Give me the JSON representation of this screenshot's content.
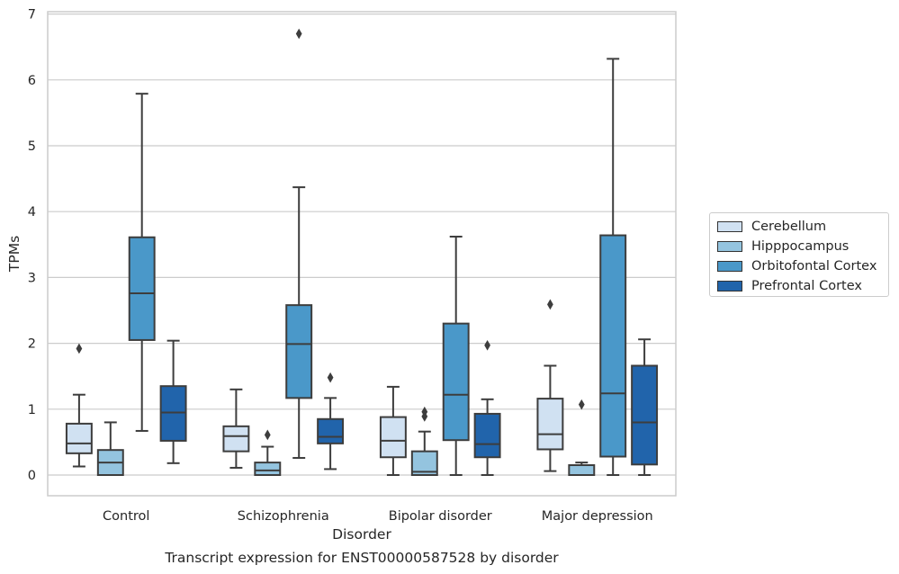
{
  "caption": "Transcript expression for ENST00000587528 by disorder",
  "chart_data": {
    "type": "box",
    "xlabel": "Disorder",
    "ylabel": "TPMs",
    "ylim": [
      -0.3,
      7.05
    ],
    "yticks": [
      0,
      1,
      2,
      3,
      4,
      5,
      6,
      7
    ],
    "grid": true,
    "legend_position": "right",
    "categories": [
      "Control",
      "Schizophrenia",
      "Bipolar disorder",
      "Major depression"
    ],
    "series": [
      {
        "name": "Cerebellum",
        "color": "#d0e1f2",
        "boxes": [
          {
            "whislo": 0.13,
            "q1": 0.33,
            "med": 0.48,
            "q3": 0.78,
            "whishi": 1.22,
            "fliers": [
              1.92
            ]
          },
          {
            "whislo": 0.11,
            "q1": 0.36,
            "med": 0.59,
            "q3": 0.74,
            "whishi": 1.3,
            "fliers": []
          },
          {
            "whislo": 0.0,
            "q1": 0.27,
            "med": 0.52,
            "q3": 0.88,
            "whishi": 1.34,
            "fliers": []
          },
          {
            "whislo": 0.06,
            "q1": 0.39,
            "med": 0.62,
            "q3": 1.16,
            "whishi": 1.66,
            "fliers": [
              2.59
            ]
          }
        ]
      },
      {
        "name": "Hipppocampus",
        "color": "#94c4df",
        "boxes": [
          {
            "whislo": 0.0,
            "q1": 0.0,
            "med": 0.19,
            "q3": 0.38,
            "whishi": 0.8,
            "fliers": []
          },
          {
            "whislo": 0.0,
            "q1": 0.0,
            "med": 0.07,
            "q3": 0.19,
            "whishi": 0.43,
            "fliers": [
              0.61
            ]
          },
          {
            "whislo": 0.0,
            "q1": 0.0,
            "med": 0.05,
            "q3": 0.36,
            "whishi": 0.66,
            "fliers": [
              0.89,
              0.96
            ]
          },
          {
            "whislo": 0.0,
            "q1": 0.0,
            "med": 0.0,
            "q3": 0.15,
            "whishi": 0.19,
            "fliers": [
              1.07
            ]
          }
        ]
      },
      {
        "name": "Orbitofontal Cortex",
        "color": "#4a98c9",
        "boxes": [
          {
            "whislo": 0.67,
            "q1": 2.05,
            "med": 2.76,
            "q3": 3.61,
            "whishi": 5.79,
            "fliers": []
          },
          {
            "whislo": 0.26,
            "q1": 1.17,
            "med": 1.99,
            "q3": 2.58,
            "whishi": 4.37,
            "fliers": [
              6.7
            ]
          },
          {
            "whislo": 0.0,
            "q1": 0.53,
            "med": 1.22,
            "q3": 2.3,
            "whishi": 3.62,
            "fliers": []
          },
          {
            "whislo": 0.0,
            "q1": 0.28,
            "med": 1.24,
            "q3": 3.64,
            "whishi": 6.32,
            "fliers": []
          }
        ]
      },
      {
        "name": "Prefrontal Cortex",
        "color": "#2164ab",
        "boxes": [
          {
            "whislo": 0.18,
            "q1": 0.52,
            "med": 0.95,
            "q3": 1.35,
            "whishi": 2.04,
            "fliers": []
          },
          {
            "whislo": 0.09,
            "q1": 0.48,
            "med": 0.58,
            "q3": 0.85,
            "whishi": 1.17,
            "fliers": [
              1.48
            ]
          },
          {
            "whislo": 0.0,
            "q1": 0.27,
            "med": 0.47,
            "q3": 0.93,
            "whishi": 1.15,
            "fliers": [
              1.97
            ]
          },
          {
            "whislo": 0.0,
            "q1": 0.16,
            "med": 0.8,
            "q3": 1.66,
            "whishi": 2.06,
            "fliers": []
          }
        ]
      }
    ]
  }
}
